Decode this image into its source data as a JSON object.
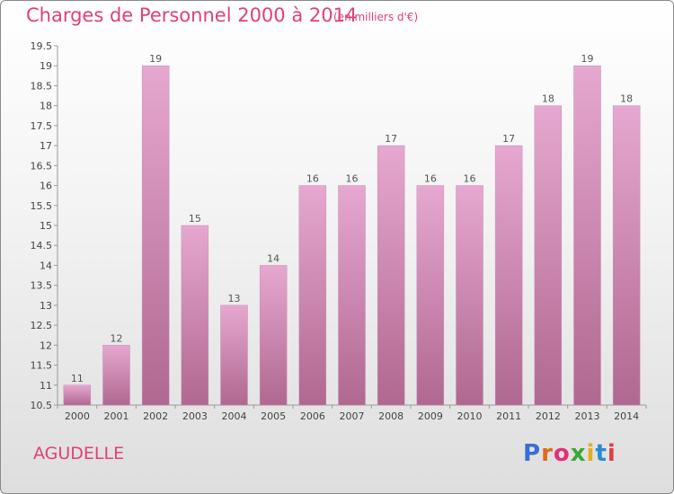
{
  "header": {
    "title": "Charges de Personnel 2000 à 2014",
    "subtitle": "(en milliers d'€)"
  },
  "footer": {
    "commune": "AGUDELLE",
    "logo": "Proxiti"
  },
  "colors": {
    "title": "#e0407a",
    "bar_top": "#e6a8d0",
    "bar_bottom": "#b06890",
    "logo": [
      "#3a6fd0",
      "#e06a1a",
      "#e0307a",
      "#3aa63a",
      "#e0b020",
      "#2a8ad0",
      "#e04040"
    ]
  },
  "chart_data": {
    "type": "bar",
    "categories": [
      "2000",
      "2001",
      "2002",
      "2003",
      "2004",
      "2005",
      "2006",
      "2007",
      "2008",
      "2009",
      "2010",
      "2011",
      "2012",
      "2013",
      "2014"
    ],
    "values": [
      11,
      12,
      19,
      15,
      13,
      14,
      16,
      16,
      17,
      16,
      16,
      17,
      18,
      19,
      18
    ],
    "data_labels": [
      "11",
      "12",
      "19",
      "15",
      "13",
      "14",
      "16",
      "16",
      "17",
      "16",
      "16",
      "17",
      "18",
      "19",
      "18"
    ],
    "ylim": [
      10.5,
      19.5
    ],
    "yticks": [
      "10.5",
      "11",
      "11.5",
      "12",
      "12.5",
      "13",
      "13.5",
      "14",
      "14.5",
      "15",
      "15.5",
      "16",
      "16.5",
      "17",
      "17.5",
      "18",
      "18.5",
      "19",
      "19.5"
    ],
    "grid": false,
    "legend": "none"
  }
}
